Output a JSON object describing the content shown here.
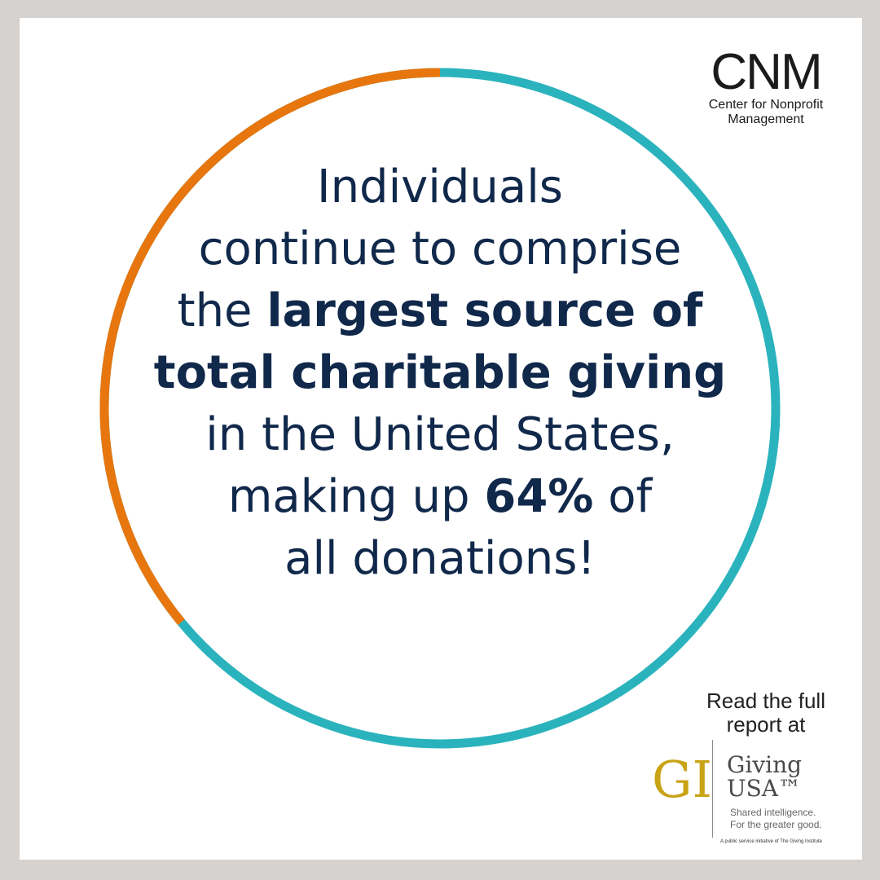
{
  "colors": {
    "background": "#d6d2cf",
    "card": "#ffffff",
    "ring_teal": "#2ab3bd",
    "ring_orange": "#e8760e",
    "text_navy": "#10284a",
    "logo_gold": "#c9a316"
  },
  "ring": {
    "orange_share": 0.36,
    "teal_share": 0.64
  },
  "cnm_logo": {
    "mark": "CNM",
    "subtitle_line1": "Center for Nonprofit",
    "subtitle_line2": "Management"
  },
  "message": {
    "line1": "Individuals",
    "line2": "continue to comprise",
    "line3_plain": "the ",
    "line3_bold": "largest source of",
    "line4_bold": "total charitable giving",
    "line5": "in the United States,",
    "line6_plain_a": "making up ",
    "line6_bold": "64%",
    "line6_plain_b": " of",
    "line7": "all donations!"
  },
  "report": {
    "line1": "Read the full",
    "line2": "report at"
  },
  "giving_usa_logo": {
    "mark": "GI",
    "name_line1": "Giving",
    "name_line2": "USA™",
    "tagline1": "Shared intelligence.",
    "tagline2": "For the greater good.",
    "footnote": "A public service initiative of The Giving Institute"
  }
}
